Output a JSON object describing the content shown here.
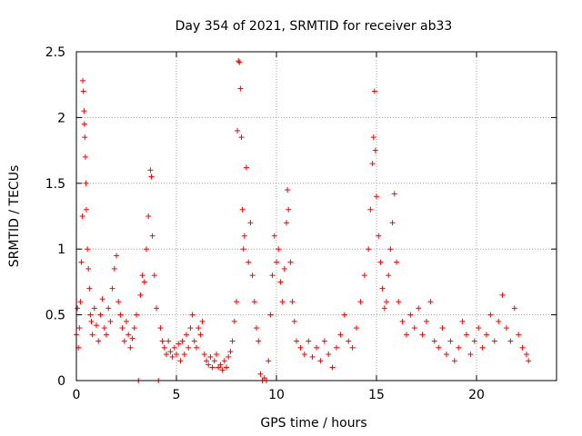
{
  "chart_data": {
    "type": "scatter",
    "title": "Day 354 of 2021, SRMTID for receiver ab33",
    "xlabel": "GPS time / hours",
    "ylabel": "SRMTID / TECUs",
    "xlim": [
      0,
      24
    ],
    "ylim": [
      0,
      2.5
    ],
    "xticks": [
      0,
      5,
      10,
      15,
      20
    ],
    "xtick_labels": [
      "0",
      "5",
      "10",
      "15",
      "20"
    ],
    "yticks": [
      0,
      0.5,
      1,
      1.5,
      2,
      2.5
    ],
    "ytick_labels": [
      "0",
      "0.5",
      "1",
      "1.5",
      "2",
      "2.5"
    ],
    "grid": true,
    "marker": "plus",
    "color": "#ff0000",
    "series": [
      {
        "name": "SRMTID",
        "points": [
          [
            0.0,
            0.35
          ],
          [
            0.05,
            0.55
          ],
          [
            0.1,
            0.25
          ],
          [
            0.15,
            0.4
          ],
          [
            0.2,
            0.6
          ],
          [
            0.25,
            0.9
          ],
          [
            0.3,
            1.25
          ],
          [
            0.32,
            2.28
          ],
          [
            0.35,
            2.2
          ],
          [
            0.38,
            2.05
          ],
          [
            0.4,
            1.95
          ],
          [
            0.42,
            1.85
          ],
          [
            0.45,
            1.7
          ],
          [
            0.48,
            1.5
          ],
          [
            0.5,
            1.3
          ],
          [
            0.55,
            1.0
          ],
          [
            0.6,
            0.85
          ],
          [
            0.65,
            0.7
          ],
          [
            0.7,
            0.5
          ],
          [
            0.75,
            0.45
          ],
          [
            0.8,
            0.35
          ],
          [
            0.9,
            0.55
          ],
          [
            1.0,
            0.42
          ],
          [
            1.1,
            0.3
          ],
          [
            1.2,
            0.5
          ],
          [
            1.3,
            0.62
          ],
          [
            1.4,
            0.4
          ],
          [
            1.5,
            0.35
          ],
          [
            1.6,
            0.55
          ],
          [
            1.7,
            0.45
          ],
          [
            1.8,
            0.7
          ],
          [
            1.9,
            0.85
          ],
          [
            2.0,
            0.95
          ],
          [
            2.1,
            0.6
          ],
          [
            2.2,
            0.5
          ],
          [
            2.3,
            0.4
          ],
          [
            2.4,
            0.3
          ],
          [
            2.5,
            0.45
          ],
          [
            2.6,
            0.35
          ],
          [
            2.7,
            0.25
          ],
          [
            2.8,
            0.32
          ],
          [
            2.9,
            0.4
          ],
          [
            3.0,
            0.5
          ],
          [
            3.1,
            0.0
          ],
          [
            3.2,
            0.65
          ],
          [
            3.3,
            0.8
          ],
          [
            3.4,
            0.75
          ],
          [
            3.5,
            1.0
          ],
          [
            3.6,
            1.25
          ],
          [
            3.7,
            1.6
          ],
          [
            3.75,
            1.55
          ],
          [
            3.8,
            1.1
          ],
          [
            3.9,
            0.8
          ],
          [
            4.0,
            0.55
          ],
          [
            4.1,
            0.0
          ],
          [
            4.2,
            0.4
          ],
          [
            4.3,
            0.3
          ],
          [
            4.4,
            0.25
          ],
          [
            4.5,
            0.2
          ],
          [
            4.6,
            0.3
          ],
          [
            4.7,
            0.22
          ],
          [
            4.8,
            0.18
          ],
          [
            4.9,
            0.25
          ],
          [
            5.0,
            0.2
          ],
          [
            5.1,
            0.28
          ],
          [
            5.2,
            0.15
          ],
          [
            5.3,
            0.3
          ],
          [
            5.4,
            0.2
          ],
          [
            5.5,
            0.35
          ],
          [
            5.6,
            0.25
          ],
          [
            5.7,
            0.4
          ],
          [
            5.8,
            0.5
          ],
          [
            5.9,
            0.3
          ],
          [
            6.0,
            0.25
          ],
          [
            6.1,
            0.4
          ],
          [
            6.2,
            0.35
          ],
          [
            6.3,
            0.45
          ],
          [
            6.4,
            0.2
          ],
          [
            6.5,
            0.15
          ],
          [
            6.6,
            0.12
          ],
          [
            6.7,
            0.18
          ],
          [
            6.8,
            0.1
          ],
          [
            6.9,
            0.15
          ],
          [
            7.0,
            0.2
          ],
          [
            7.1,
            0.1
          ],
          [
            7.2,
            0.12
          ],
          [
            7.3,
            0.08
          ],
          [
            7.4,
            0.15
          ],
          [
            7.5,
            0.1
          ],
          [
            7.6,
            0.18
          ],
          [
            7.7,
            0.22
          ],
          [
            7.8,
            0.3
          ],
          [
            7.9,
            0.45
          ],
          [
            8.0,
            0.6
          ],
          [
            8.05,
            1.9
          ],
          [
            8.1,
            2.43
          ],
          [
            8.15,
            2.42
          ],
          [
            8.2,
            2.22
          ],
          [
            8.25,
            1.85
          ],
          [
            8.3,
            1.3
          ],
          [
            8.35,
            1.0
          ],
          [
            8.4,
            1.1
          ],
          [
            8.5,
            1.62
          ],
          [
            8.6,
            0.9
          ],
          [
            8.7,
            1.2
          ],
          [
            8.8,
            0.8
          ],
          [
            8.9,
            0.6
          ],
          [
            9.0,
            0.4
          ],
          [
            9.1,
            0.3
          ],
          [
            9.2,
            0.05
          ],
          [
            9.3,
            0.0
          ],
          [
            9.4,
            0.02
          ],
          [
            9.5,
            0.0
          ],
          [
            9.6,
            0.15
          ],
          [
            9.7,
            0.5
          ],
          [
            9.8,
            0.8
          ],
          [
            9.9,
            1.1
          ],
          [
            10.0,
            0.9
          ],
          [
            10.1,
            1.0
          ],
          [
            10.2,
            0.75
          ],
          [
            10.3,
            0.6
          ],
          [
            10.4,
            0.85
          ],
          [
            10.5,
            1.2
          ],
          [
            10.55,
            1.45
          ],
          [
            10.6,
            1.3
          ],
          [
            10.7,
            0.9
          ],
          [
            10.8,
            0.6
          ],
          [
            10.9,
            0.45
          ],
          [
            11.0,
            0.3
          ],
          [
            11.2,
            0.25
          ],
          [
            11.4,
            0.2
          ],
          [
            11.6,
            0.3
          ],
          [
            11.8,
            0.18
          ],
          [
            12.0,
            0.25
          ],
          [
            12.2,
            0.15
          ],
          [
            12.4,
            0.3
          ],
          [
            12.6,
            0.2
          ],
          [
            12.8,
            0.1
          ],
          [
            13.0,
            0.25
          ],
          [
            13.2,
            0.35
          ],
          [
            13.4,
            0.5
          ],
          [
            13.6,
            0.3
          ],
          [
            13.8,
            0.25
          ],
          [
            14.0,
            0.4
          ],
          [
            14.2,
            0.6
          ],
          [
            14.4,
            0.8
          ],
          [
            14.6,
            1.0
          ],
          [
            14.7,
            1.3
          ],
          [
            14.8,
            1.65
          ],
          [
            14.85,
            1.85
          ],
          [
            14.9,
            2.2
          ],
          [
            14.95,
            1.75
          ],
          [
            15.0,
            1.4
          ],
          [
            15.1,
            1.1
          ],
          [
            15.2,
            0.9
          ],
          [
            15.3,
            0.7
          ],
          [
            15.4,
            0.55
          ],
          [
            15.5,
            0.6
          ],
          [
            15.6,
            0.8
          ],
          [
            15.7,
            1.0
          ],
          [
            15.8,
            1.2
          ],
          [
            15.9,
            1.42
          ],
          [
            16.0,
            0.9
          ],
          [
            16.1,
            0.6
          ],
          [
            16.3,
            0.45
          ],
          [
            16.5,
            0.35
          ],
          [
            16.7,
            0.5
          ],
          [
            16.9,
            0.4
          ],
          [
            17.1,
            0.55
          ],
          [
            17.3,
            0.35
          ],
          [
            17.5,
            0.45
          ],
          [
            17.7,
            0.6
          ],
          [
            17.9,
            0.3
          ],
          [
            18.1,
            0.25
          ],
          [
            18.3,
            0.4
          ],
          [
            18.5,
            0.2
          ],
          [
            18.7,
            0.3
          ],
          [
            18.9,
            0.15
          ],
          [
            19.1,
            0.25
          ],
          [
            19.3,
            0.45
          ],
          [
            19.5,
            0.35
          ],
          [
            19.7,
            0.2
          ],
          [
            19.9,
            0.3
          ],
          [
            20.1,
            0.4
          ],
          [
            20.3,
            0.25
          ],
          [
            20.5,
            0.35
          ],
          [
            20.7,
            0.5
          ],
          [
            20.9,
            0.3
          ],
          [
            21.1,
            0.45
          ],
          [
            21.3,
            0.65
          ],
          [
            21.5,
            0.4
          ],
          [
            21.7,
            0.3
          ],
          [
            21.9,
            0.55
          ],
          [
            22.1,
            0.35
          ],
          [
            22.3,
            0.25
          ],
          [
            22.5,
            0.2
          ],
          [
            22.6,
            0.15
          ]
        ]
      }
    ]
  }
}
